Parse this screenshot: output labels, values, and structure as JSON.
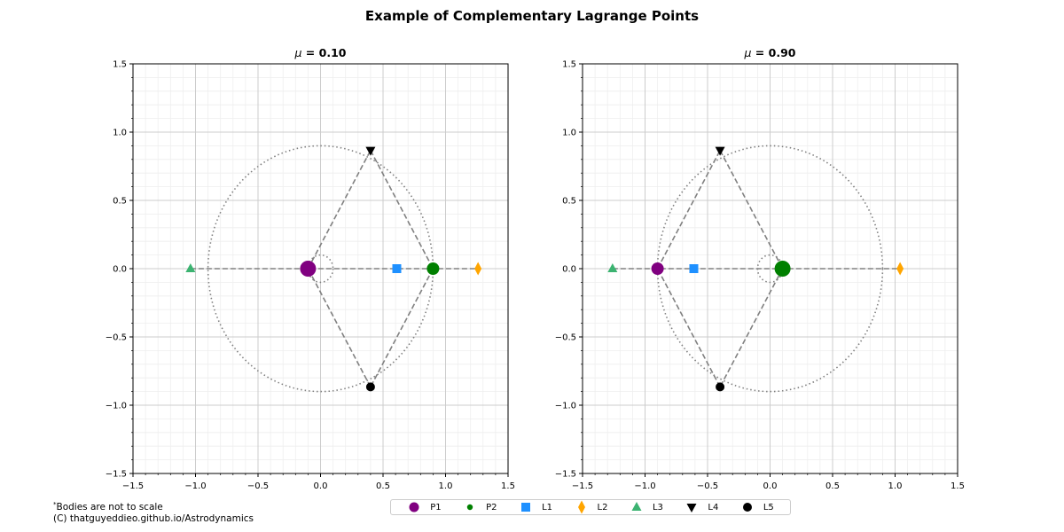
{
  "suptitle": "Example of Complementary Lagrange Points",
  "footnote_star": "*",
  "footnote_line1": "Bodies are not to scale",
  "footnote_line2": "(C) thatguyeddieo.github.io/Astrodynamics",
  "colors": {
    "P1": "#800080",
    "P2": "#008000",
    "L1": "#1e90ff",
    "L2": "#ffa500",
    "L3": "#3cb371",
    "L4": "#000000",
    "L5": "#000000",
    "guide": "#808080"
  },
  "legend": [
    {
      "key": "P1",
      "label": "P1",
      "marker": "circle-large"
    },
    {
      "key": "P2",
      "label": "P2",
      "marker": "circle-small"
    },
    {
      "key": "L1",
      "label": "L1",
      "marker": "square"
    },
    {
      "key": "L2",
      "label": "L2",
      "marker": "diamond"
    },
    {
      "key": "L3",
      "label": "L3",
      "marker": "triangle-up"
    },
    {
      "key": "L4",
      "label": "L4",
      "marker": "triangle-down"
    },
    {
      "key": "L5",
      "label": "L5",
      "marker": "circle"
    }
  ],
  "chart_data": [
    {
      "type": "scatter",
      "title_symbol": "μ",
      "title_value": " = 0.10",
      "xlim": [
        -1.5,
        1.5
      ],
      "ylim": [
        -1.5,
        1.5
      ],
      "xticks": [
        "−1.5",
        "−1.0",
        "−0.5",
        "0.0",
        "0.5",
        "1.0",
        "1.5"
      ],
      "yticks": [
        "−1.5",
        "−1.0",
        "−0.5",
        "0.0",
        "0.5",
        "1.0",
        "1.5"
      ],
      "grid": true,
      "orbit_radii": [
        0.9,
        0.1
      ],
      "points": {
        "P1": [
          -0.1,
          0.0
        ],
        "P2": [
          0.9,
          0.0
        ],
        "L1": [
          0.61,
          0.0
        ],
        "L2": [
          1.26,
          0.0
        ],
        "L3": [
          -1.04,
          0.0
        ],
        "L4": [
          0.4,
          0.866
        ],
        "L5": [
          0.4,
          -0.866
        ]
      },
      "body_sizes": {
        "P1": "large",
        "P2": "medium"
      }
    },
    {
      "type": "scatter",
      "title_symbol": "μ",
      "title_value": " = 0.90",
      "xlim": [
        -1.5,
        1.5
      ],
      "ylim": [
        -1.5,
        1.5
      ],
      "xticks": [
        "−1.5",
        "−1.0",
        "−0.5",
        "0.0",
        "0.5",
        "1.0",
        "1.5"
      ],
      "yticks": [
        "−1.5",
        "−1.0",
        "−0.5",
        "0.0",
        "0.5",
        "1.0",
        "1.5"
      ],
      "grid": true,
      "orbit_radii": [
        0.1,
        0.9
      ],
      "points": {
        "P1": [
          -0.9,
          0.0
        ],
        "P2": [
          0.1,
          0.0
        ],
        "L1": [
          -0.61,
          0.0
        ],
        "L2": [
          1.04,
          0.0
        ],
        "L3": [
          -1.26,
          0.0
        ],
        "L4": [
          -0.4,
          0.866
        ],
        "L5": [
          -0.4,
          -0.866
        ]
      },
      "body_sizes": {
        "P1": "medium",
        "P2": "large"
      }
    }
  ]
}
